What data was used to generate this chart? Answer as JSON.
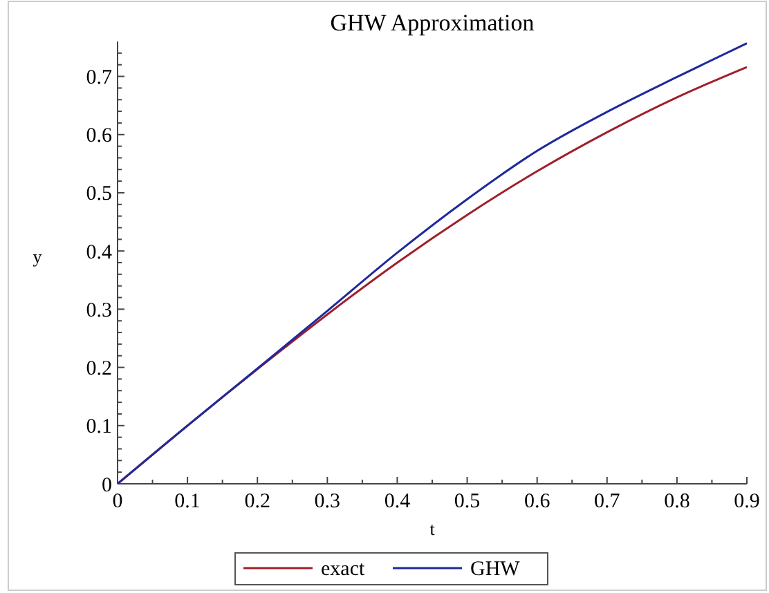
{
  "chart_data": {
    "type": "line",
    "title": "GHW Approximation",
    "xlabel": "t",
    "ylabel": "y",
    "x": [
      0,
      0.1,
      0.2,
      0.3,
      0.4,
      0.5,
      0.6,
      0.7,
      0.8,
      0.9
    ],
    "series": [
      {
        "name": "exact",
        "color": "#a0202a",
        "values": [
          0,
          0.1,
          0.197,
          0.291,
          0.38,
          0.462,
          0.537,
          0.604,
          0.664,
          0.716
        ]
      },
      {
        "name": "GHW",
        "color": "#1f2a9a",
        "values": [
          0,
          0.1,
          0.198,
          0.297,
          0.397,
          0.489,
          0.572,
          0.639,
          0.699,
          0.757
        ]
      }
    ],
    "xlim": [
      0,
      0.9
    ],
    "ylim": [
      0,
      0.76
    ],
    "xticks": [
      0,
      {
        "value": 0.05,
        "label": null
      },
      0.1,
      {
        "value": 0.15,
        "label": null
      },
      0.2,
      {
        "value": 0.25,
        "label": null
      },
      0.3,
      {
        "value": 0.35,
        "label": null
      },
      0.4,
      {
        "value": 0.45,
        "label": null
      },
      0.5,
      {
        "value": 0.55,
        "label": null
      },
      0.6,
      {
        "value": 0.65,
        "label": null
      },
      0.7,
      {
        "value": 0.75,
        "label": null
      },
      0.8,
      {
        "value": 0.85,
        "label": null
      },
      0.9
    ],
    "yticks": [
      0,
      {
        "value": 0.02,
        "label": null
      },
      {
        "value": 0.04,
        "label": null
      },
      {
        "value": 0.06,
        "label": null
      },
      {
        "value": 0.08,
        "label": null
      },
      0.1,
      {
        "value": 0.12,
        "label": null
      },
      {
        "value": 0.14,
        "label": null
      },
      {
        "value": 0.16,
        "label": null
      },
      {
        "value": 0.18,
        "label": null
      },
      0.2,
      {
        "value": 0.22,
        "label": null
      },
      {
        "value": 0.24,
        "label": null
      },
      {
        "value": 0.26,
        "label": null
      },
      {
        "value": 0.28,
        "label": null
      },
      0.3,
      {
        "value": 0.32,
        "label": null
      },
      {
        "value": 0.34,
        "label": null
      },
      {
        "value": 0.36,
        "label": null
      },
      {
        "value": 0.38,
        "label": null
      },
      0.4,
      {
        "value": 0.42,
        "label": null
      },
      {
        "value": 0.44,
        "label": null
      },
      {
        "value": 0.46,
        "label": null
      },
      {
        "value": 0.48,
        "label": null
      },
      0.5,
      {
        "value": 0.52,
        "label": null
      },
      {
        "value": 0.54,
        "label": null
      },
      {
        "value": 0.56,
        "label": null
      },
      {
        "value": 0.58,
        "label": null
      },
      0.6,
      {
        "value": 0.62,
        "label": null
      },
      {
        "value": 0.64,
        "label": null
      },
      {
        "value": 0.66,
        "label": null
      },
      {
        "value": 0.68,
        "label": null
      },
      0.7,
      {
        "value": 0.72,
        "label": null
      },
      {
        "value": 0.74,
        "label": null
      }
    ],
    "grid": false,
    "legend": "bottom",
    "marker": "none",
    "line_style": "solid"
  }
}
